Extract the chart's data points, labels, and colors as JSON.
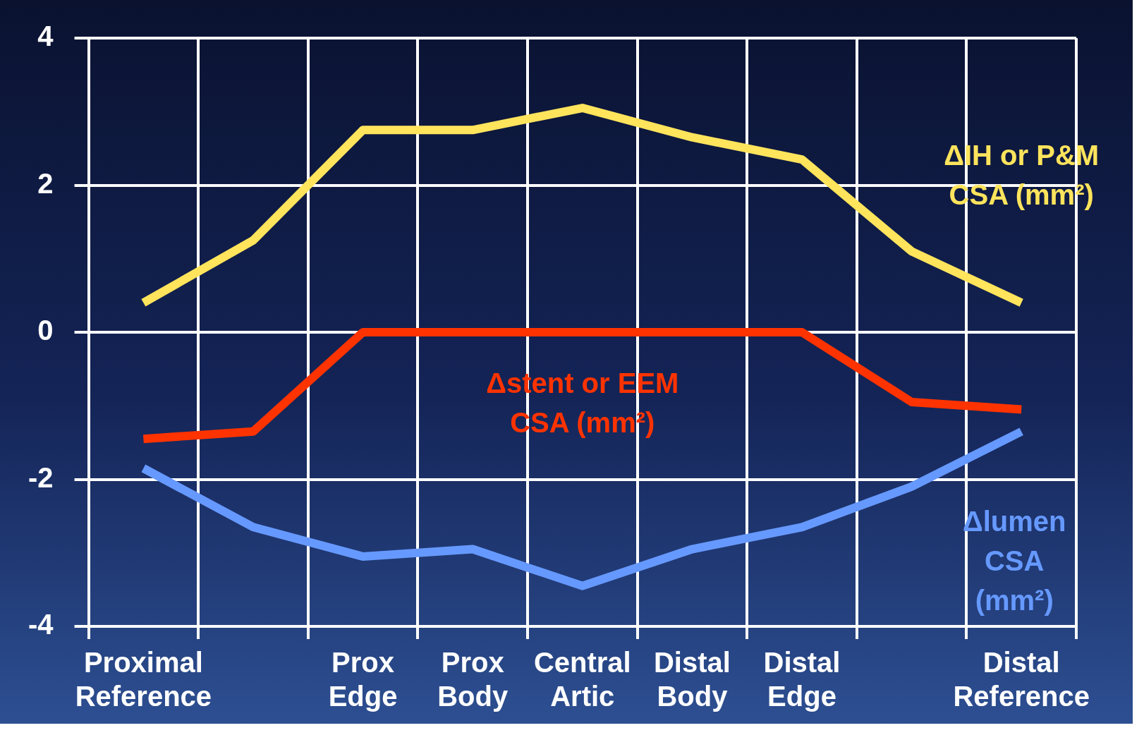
{
  "chart_data": {
    "type": "line",
    "categories": [
      "Proximal Reference",
      null,
      "Prox Edge",
      "Prox Body",
      "Central Artic",
      "Distal Body",
      "Distal Edge",
      null,
      "Distal Reference"
    ],
    "series": [
      {
        "name": "ΔIH or P&M CSA (mm²)",
        "color": "#ffe45c",
        "values": [
          0.4,
          1.25,
          2.75,
          2.75,
          3.05,
          2.65,
          2.35,
          1.1,
          0.4
        ]
      },
      {
        "name": "Δstent or EEM CSA (mm²)",
        "color": "#ff3300",
        "values": [
          -1.45,
          -1.35,
          0,
          0,
          0,
          0,
          0,
          -0.95,
          -1.05
        ]
      },
      {
        "name": "Δlumen CSA (mm²)",
        "color": "#6699ff",
        "values": [
          -1.85,
          -2.65,
          -3.05,
          -2.95,
          -3.45,
          -2.95,
          -2.65,
          -2.1,
          -1.35
        ]
      }
    ],
    "ylim": [
      -4,
      4
    ],
    "yticks": [
      -4,
      -2,
      0,
      2,
      4
    ],
    "grid": true,
    "legend": false,
    "marker": "none",
    "line_style": "solid"
  }
}
